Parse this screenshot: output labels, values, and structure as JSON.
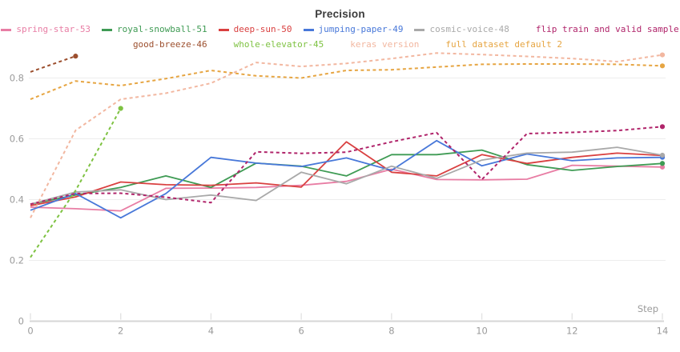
{
  "chart_data": {
    "type": "line",
    "title": "Precision",
    "xlabel": "Step",
    "ylabel": "",
    "x": [
      0,
      1,
      2,
      3,
      4,
      5,
      6,
      7,
      8,
      9,
      10,
      11,
      12,
      13,
      14
    ],
    "x_ticks": [
      0,
      2,
      4,
      6,
      8,
      10,
      12,
      14
    ],
    "y_ticks": [
      0,
      0.2,
      0.4,
      0.6,
      0.8
    ],
    "xlim": [
      0,
      14
    ],
    "ylim": [
      0,
      0.92
    ],
    "grid": "horizontal",
    "legend_position": "top",
    "legend_break_index": 6,
    "series": [
      {
        "name": "spring-star-53",
        "color": "#e87da4",
        "dashed": false,
        "end_marker": true,
        "values": [
          0.375,
          0.37,
          0.363,
          0.437,
          0.438,
          0.44,
          0.447,
          0.46,
          0.5,
          0.466,
          0.465,
          0.467,
          0.513,
          0.51,
          0.507
        ]
      },
      {
        "name": "royal-snowball-51",
        "color": "#3f9b54",
        "dashed": false,
        "end_marker": true,
        "values": [
          0.385,
          0.415,
          0.44,
          0.478,
          0.44,
          0.52,
          0.51,
          0.478,
          0.548,
          0.548,
          0.563,
          0.515,
          0.496,
          0.509,
          0.519
        ]
      },
      {
        "name": "deep-sun-50",
        "color": "#d94040",
        "dashed": false,
        "end_marker": true,
        "values": [
          0.38,
          0.409,
          0.458,
          0.449,
          0.447,
          0.455,
          0.441,
          0.59,
          0.49,
          0.478,
          0.548,
          0.519,
          0.539,
          0.553,
          0.545
        ]
      },
      {
        "name": "jumping-paper-49",
        "color": "#4878d9",
        "dashed": false,
        "end_marker": true,
        "values": [
          0.365,
          0.42,
          0.34,
          0.42,
          0.539,
          0.52,
          0.509,
          0.537,
          0.496,
          0.594,
          0.511,
          0.55,
          0.528,
          0.537,
          0.539
        ]
      },
      {
        "name": "cosmic-voice-48",
        "color": "#a9a9a9",
        "dashed": false,
        "end_marker": true,
        "values": [
          0.385,
          0.425,
          0.432,
          0.4,
          0.415,
          0.397,
          0.49,
          0.452,
          0.51,
          0.47,
          0.53,
          0.553,
          0.556,
          0.572,
          0.546
        ]
      },
      {
        "name": "flip train and valid sample",
        "color": "#b0246a",
        "dashed": true,
        "end_marker": true,
        "values": [
          0.385,
          0.42,
          0.421,
          0.408,
          0.39,
          0.557,
          0.552,
          0.556,
          0.59,
          0.62,
          0.466,
          0.617,
          0.621,
          0.627,
          0.64
        ]
      },
      {
        "name": "good-breeze-46",
        "color": "#9c4f2e",
        "dashed": true,
        "end_marker": true,
        "values": [
          0.82,
          0.872
        ]
      },
      {
        "name": "whole-elevator-45",
        "color": "#7ec242",
        "dashed": true,
        "end_marker": true,
        "values": [
          0.21,
          0.43,
          0.7
        ]
      },
      {
        "name": "keras version",
        "color": "#f2b7a0",
        "dashed": true,
        "end_marker": true,
        "values": [
          0.34,
          0.628,
          0.73,
          0.75,
          0.783,
          0.851,
          0.838,
          0.848,
          0.864,
          0.882,
          0.877,
          0.871,
          0.864,
          0.854,
          0.876
        ]
      },
      {
        "name": "full dataset default 2",
        "color": "#e6a542",
        "dashed": true,
        "end_marker": true,
        "values": [
          0.73,
          0.79,
          0.775,
          0.798,
          0.825,
          0.807,
          0.8,
          0.825,
          0.827,
          0.836,
          0.845,
          0.846,
          0.846,
          0.845,
          0.84
        ]
      }
    ],
    "colors": {
      "grid": "#ededed",
      "axis": "#d6d6d6",
      "tick": "#e3e3e3",
      "tick_label": "#9b9b9b",
      "title": "#3b3b3b"
    }
  }
}
